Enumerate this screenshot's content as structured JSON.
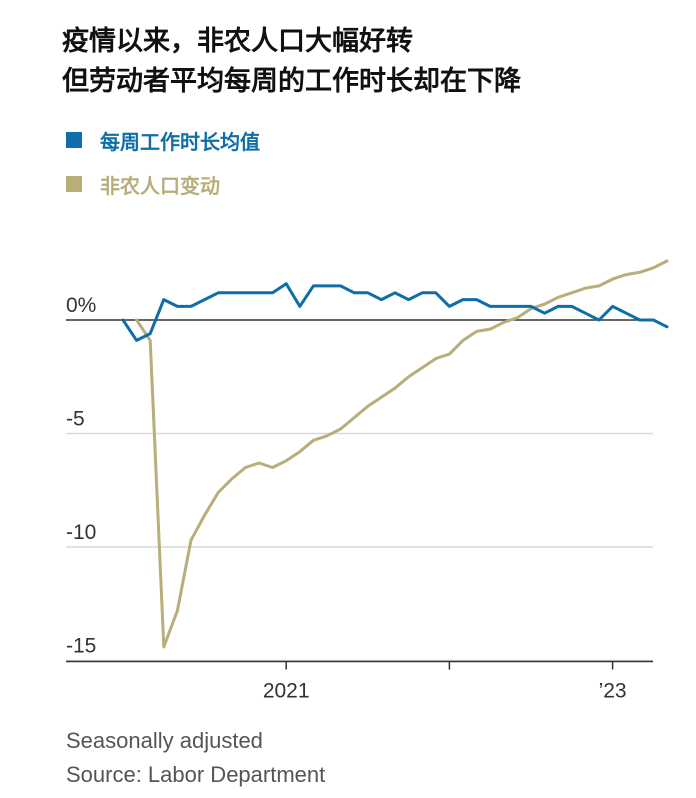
{
  "title_line1": "疫情以来，非农人口大幅好转",
  "title_line2": "但劳动者平均每周的工作时长却在下降",
  "notes": [
    "Seasonally adjusted",
    "Source: Labor Department"
  ],
  "colors": {
    "hours": "#0f6ea8",
    "payroll": "#b7ae79"
  },
  "chart_data": {
    "type": "line",
    "ylim": [
      -15,
      2.6
    ],
    "y_ticks": [
      0,
      -5,
      -10,
      -15
    ],
    "y_tick_labels": [
      "0%",
      "-5",
      "-10",
      "-15"
    ],
    "x_tick_labels": [
      {
        "label": "2021",
        "date": "2021-01"
      },
      {
        "label": "’23",
        "date": "2023-01"
      }
    ],
    "x_minor_ticks": [
      "2022-01"
    ],
    "grid": true,
    "series": [
      {
        "name": "每周工作时长均值",
        "color": "#0f6ea8",
        "x": [
          "2020-01",
          "2020-02",
          "2020-03",
          "2020-04",
          "2020-05",
          "2020-06",
          "2020-07",
          "2020-08",
          "2020-09",
          "2020-10",
          "2020-11",
          "2020-12",
          "2021-01",
          "2021-02",
          "2021-03",
          "2021-04",
          "2021-05",
          "2021-06",
          "2021-07",
          "2021-08",
          "2021-09",
          "2021-10",
          "2021-11",
          "2021-12",
          "2022-01",
          "2022-02",
          "2022-03",
          "2022-04",
          "2022-05",
          "2022-06",
          "2022-07",
          "2022-08",
          "2022-09",
          "2022-10",
          "2022-11",
          "2022-12",
          "2023-01",
          "2023-02",
          "2023-03",
          "2023-04",
          "2023-05"
        ],
        "values": [
          0.0,
          -0.9,
          -0.6,
          0.9,
          0.6,
          0.6,
          0.9,
          1.2,
          1.2,
          1.2,
          1.2,
          1.2,
          1.6,
          0.6,
          1.5,
          1.5,
          1.5,
          1.2,
          1.2,
          0.9,
          1.2,
          0.9,
          1.2,
          1.2,
          0.6,
          0.9,
          0.9,
          0.6,
          0.6,
          0.6,
          0.6,
          0.3,
          0.6,
          0.6,
          0.3,
          0.0,
          0.6,
          0.3,
          0.0,
          0.0,
          -0.3
        ]
      },
      {
        "name": "非农人口变动",
        "color": "#b7ae79",
        "x": [
          "2020-02",
          "2020-03",
          "2020-04",
          "2020-05",
          "2020-06",
          "2020-07",
          "2020-08",
          "2020-09",
          "2020-10",
          "2020-11",
          "2020-12",
          "2021-01",
          "2021-02",
          "2021-03",
          "2021-04",
          "2021-05",
          "2021-06",
          "2021-07",
          "2021-08",
          "2021-09",
          "2021-10",
          "2021-11",
          "2021-12",
          "2022-01",
          "2022-02",
          "2022-03",
          "2022-04",
          "2022-05",
          "2022-06",
          "2022-07",
          "2022-08",
          "2022-09",
          "2022-10",
          "2022-11",
          "2022-12",
          "2023-01",
          "2023-02",
          "2023-03",
          "2023-04",
          "2023-05"
        ],
        "values": [
          0.0,
          -0.9,
          -14.4,
          -12.8,
          -9.7,
          -8.6,
          -7.6,
          -7.0,
          -6.5,
          -6.3,
          -6.5,
          -6.2,
          -5.8,
          -5.3,
          -5.1,
          -4.8,
          -4.3,
          -3.8,
          -3.4,
          -3.0,
          -2.5,
          -2.1,
          -1.7,
          -1.5,
          -0.9,
          -0.5,
          -0.4,
          -0.1,
          0.1,
          0.5,
          0.7,
          1.0,
          1.2,
          1.4,
          1.5,
          1.8,
          2.0,
          2.1,
          2.3,
          2.6
        ]
      }
    ]
  }
}
